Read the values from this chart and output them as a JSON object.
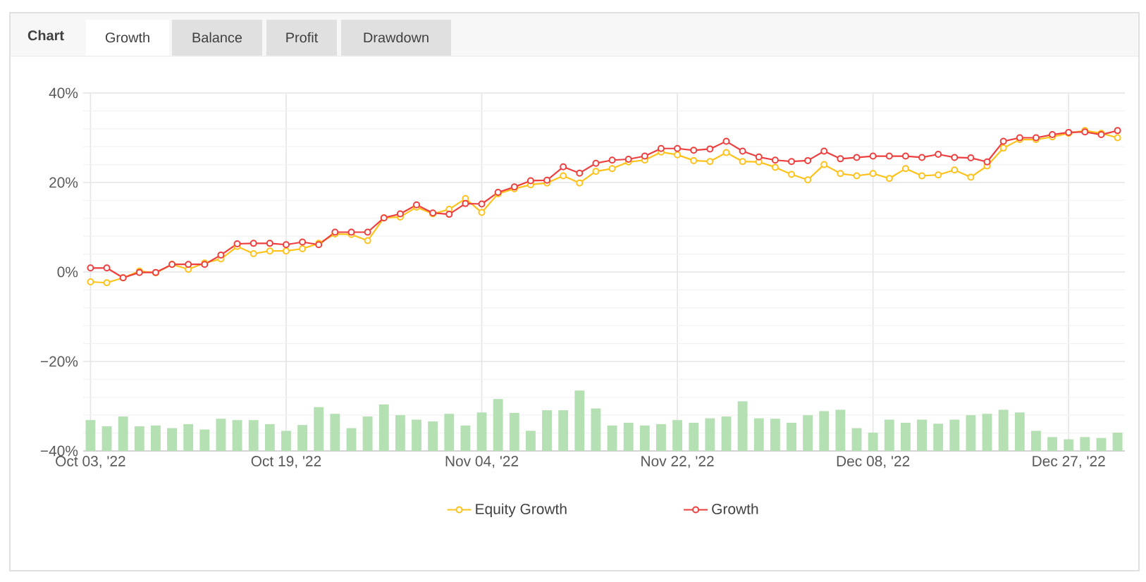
{
  "chart_data": {
    "type": "line",
    "categories": [
      "Oct 03, '22",
      null,
      null,
      null,
      null,
      null,
      null,
      null,
      null,
      null,
      null,
      null,
      "Oct 19, '22",
      null,
      null,
      null,
      null,
      null,
      null,
      null,
      null,
      null,
      null,
      null,
      "Nov 04, '22",
      null,
      null,
      null,
      null,
      null,
      null,
      null,
      null,
      null,
      null,
      null,
      "Nov 22, '22",
      null,
      null,
      null,
      null,
      null,
      null,
      null,
      null,
      null,
      null,
      null,
      "Dec 08, '22",
      null,
      null,
      null,
      null,
      null,
      null,
      null,
      null,
      null,
      null,
      null,
      "Dec 27, '22",
      null,
      null,
      null
    ],
    "series": [
      {
        "type": "bar",
        "color": "#b5e0b3",
        "base": [
          -40,
          -40,
          -40,
          -40,
          -40,
          -40,
          -40,
          -40,
          -40,
          -40,
          -40,
          -40,
          -40,
          -40,
          -40,
          -40,
          -40,
          -40,
          -40,
          -40,
          -40,
          -40,
          -40,
          -40,
          -40,
          -40,
          -40,
          -40,
          -40,
          -40,
          -40,
          -40,
          -40,
          -40,
          -40,
          -40,
          -40,
          -40,
          -40,
          -40,
          -40,
          -40,
          -40,
          -40,
          -40,
          -40,
          -40,
          -40,
          -40,
          -40,
          -40,
          -40,
          -40,
          -40,
          -40,
          -40,
          -40,
          -40,
          -40,
          -40,
          -40,
          -40,
          -40,
          -40
        ],
        "values": [
          6.9,
          5.5,
          7.7,
          5.5,
          5.7,
          5.1,
          6.0,
          4.8,
          7.2,
          6.9,
          6.9,
          6.0,
          4.5,
          5.8,
          9.8,
          8.3,
          5.1,
          7.7,
          10.4,
          8.0,
          7.0,
          6.6,
          8.3,
          5.7,
          8.6,
          11.6,
          8.5,
          4.5,
          9.1,
          9.1,
          13.5,
          9.5,
          5.7,
          6.3,
          5.7,
          6.0,
          6.9,
          6.3,
          7.3,
          7.7,
          11.1,
          7.3,
          7.2,
          6.3,
          8.0,
          8.9,
          9.2,
          5.1,
          4.1,
          7.0,
          6.3,
          7.0,
          6.1,
          7.0,
          8.0,
          8.3,
          9.2,
          8.6,
          4.5,
          3.1,
          2.6,
          3.1,
          2.9,
          4.1
        ]
      },
      {
        "name": "Equity Growth",
        "color": "#ffc21a",
        "values": [
          -2.2,
          -2.4,
          -1.3,
          0.2,
          -0.2,
          1.7,
          0.6,
          2.0,
          2.9,
          5.7,
          4.1,
          4.7,
          4.7,
          5.2,
          6.4,
          8.5,
          8.4,
          7.0,
          12.1,
          12.3,
          14.5,
          13.0,
          14.0,
          16.4,
          13.3,
          17.5,
          18.6,
          19.5,
          19.9,
          21.5,
          19.9,
          22.5,
          23.1,
          24.6,
          25.0,
          26.8,
          26.2,
          24.9,
          24.7,
          26.7,
          24.7,
          24.6,
          23.4,
          21.8,
          20.6,
          24.0,
          22.0,
          21.5,
          22.0,
          20.9,
          23.1,
          21.5,
          21.7,
          22.8,
          21.2,
          23.7,
          27.7,
          29.6,
          29.6,
          30.2,
          31.0,
          31.6,
          31.0,
          30.0
        ]
      },
      {
        "name": "Growth",
        "color": "#ee3f3f",
        "values": [
          0.9,
          0.9,
          -1.3,
          -0.1,
          -0.1,
          1.7,
          1.7,
          1.7,
          3.8,
          6.3,
          6.4,
          6.4,
          6.1,
          6.7,
          6.1,
          8.9,
          8.9,
          8.9,
          12.1,
          13.0,
          15.0,
          13.2,
          12.9,
          15.3,
          15.2,
          17.8,
          19.0,
          20.4,
          20.5,
          23.5,
          22.1,
          24.3,
          25.0,
          25.2,
          25.9,
          27.6,
          27.6,
          27.2,
          27.5,
          29.2,
          27.0,
          25.7,
          25.0,
          24.7,
          24.9,
          27.0,
          25.3,
          25.6,
          25.9,
          25.9,
          25.9,
          25.6,
          26.3,
          25.6,
          25.5,
          24.6,
          29.2,
          30.0,
          30.0,
          30.7,
          31.2,
          31.3,
          30.7,
          31.6
        ]
      }
    ],
    "ylim": [
      -40,
      40
    ],
    "yticks": [
      {
        "value": -40,
        "label": "−40%"
      },
      {
        "value": -20,
        "label": "−20%"
      },
      {
        "value": 0,
        "label": "0%"
      },
      {
        "value": 20,
        "label": "20%"
      },
      {
        "value": 40,
        "label": "40%"
      }
    ],
    "grid": true,
    "legend": "bottom",
    "marker": "circle",
    "line_style": "solid",
    "annotations": [
      "Chart",
      "Growth",
      "Balance",
      "Profit",
      "Drawdown"
    ]
  }
}
